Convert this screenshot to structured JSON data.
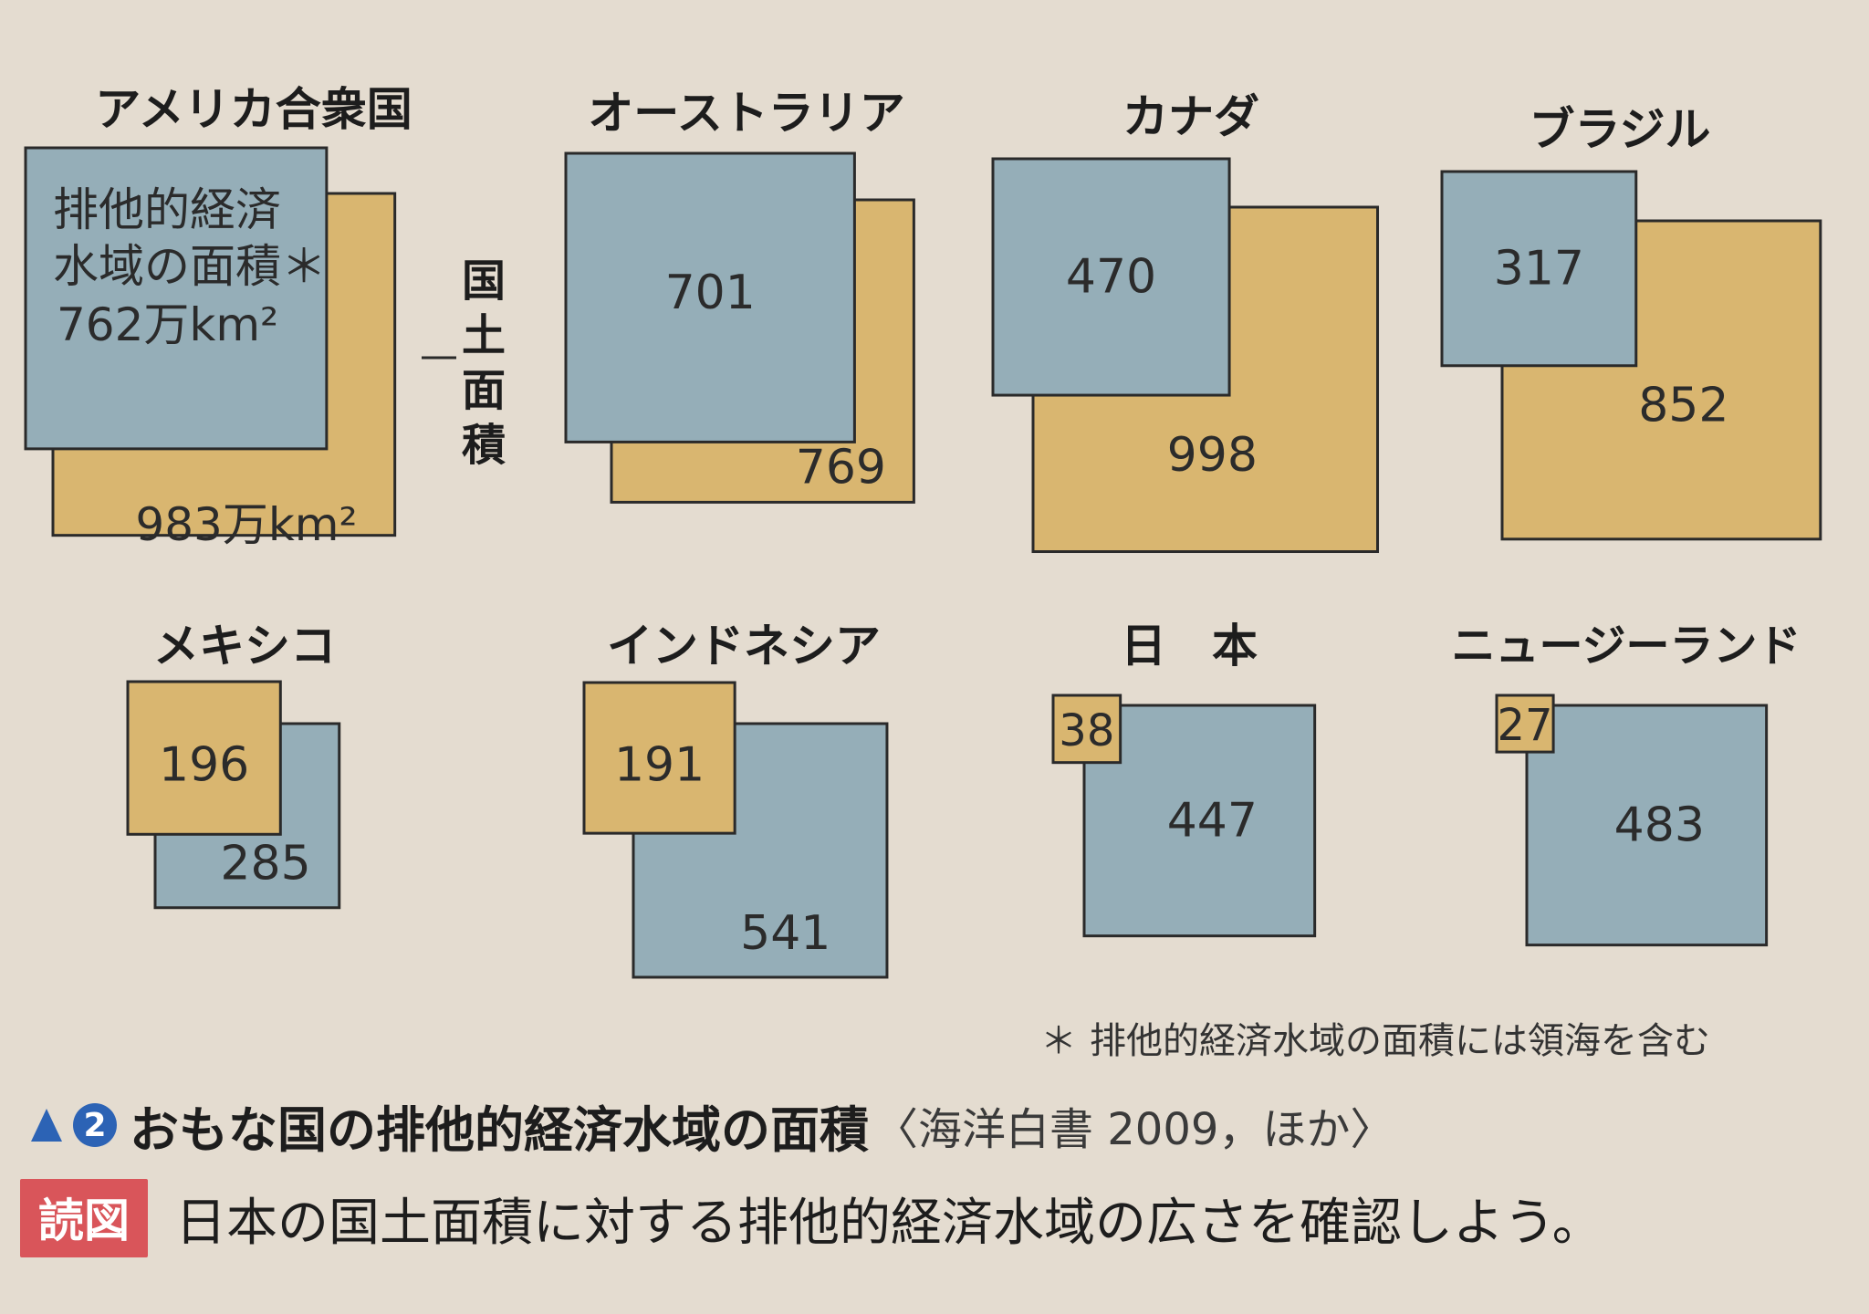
{
  "chart_data": {
    "type": "area-squares",
    "unit": "万km²",
    "legend": {
      "eez_label": [
        "排他的経済",
        "水域の面積＊"
      ],
      "land_label": "国土面積"
    },
    "countries": [
      {
        "name": "アメリカ合衆国",
        "eez": 762,
        "land": 983,
        "eez_text": "762万km²",
        "land_text": "983万km²"
      },
      {
        "name": "オーストラリア",
        "eez": 701,
        "land": 769
      },
      {
        "name": "カナダ",
        "eez": 470,
        "land": 998
      },
      {
        "name": "ブラジル",
        "eez": 317,
        "land": 852
      },
      {
        "name": "メキシコ",
        "eez": 285,
        "land": 196
      },
      {
        "name": "インドネシア",
        "eez": 541,
        "land": 191
      },
      {
        "name": "日　本",
        "eez": 447,
        "land": 38
      },
      {
        "name": "ニュージーランド",
        "eez": 483,
        "land": 27
      }
    ],
    "colors": {
      "eez": "#95aeb8",
      "land": "#d9b670",
      "stroke": "#2a2a2a"
    }
  },
  "footnote": {
    "mark": "＊",
    "text": "排他的経済水域の面積には領海を含む"
  },
  "caption": {
    "number": "2",
    "title": "おもな国の排他的経済水域の面積",
    "source": "〈海洋白書 2009，ほか〉"
  },
  "prompt": {
    "badge": "読図",
    "text": "日本の国土面積に対する排他的経済水域の広さを確認しよう。"
  }
}
